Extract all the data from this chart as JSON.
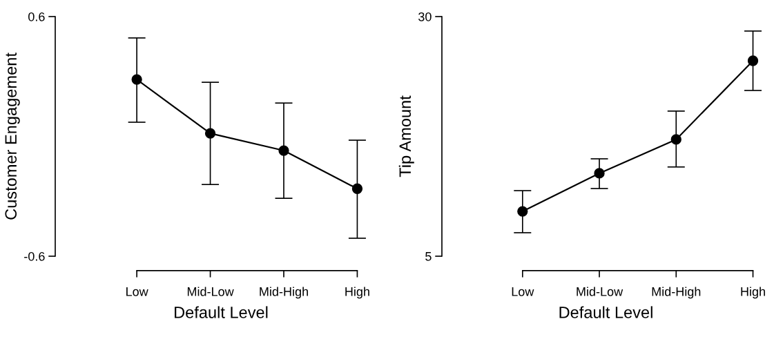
{
  "chart_data": [
    {
      "type": "line",
      "categories": [
        "Low",
        "Mid-Low",
        "Mid-High",
        "High"
      ],
      "xlabel": "Default Level",
      "ylabel": "Customer Engagement",
      "ylim": [
        -0.6,
        0.6
      ],
      "yticks": [
        0.6,
        -0.6
      ],
      "marker": "circle",
      "line_style": "solid",
      "grid": false,
      "legend": false,
      "series": [
        {
          "color": "#000000",
          "values": [
            0.285,
            0.015,
            -0.071,
            -0.262
          ],
          "errors": [
            [
              0.071,
              0.493
            ],
            [
              -0.241,
              0.271
            ],
            [
              -0.31,
              0.167
            ],
            [
              -0.51,
              -0.019
            ]
          ]
        }
      ]
    },
    {
      "type": "line",
      "categories": [
        "Low",
        "Mid-Low",
        "Mid-High",
        "High"
      ],
      "xlabel": "Default Level",
      "ylabel": "Tip Amount",
      "ylim": [
        5,
        30
      ],
      "yticks": [
        30,
        5
      ],
      "marker": "circle",
      "line_style": "solid",
      "grid": false,
      "legend": false,
      "series": [
        {
          "color": "#000000",
          "values": [
            9.68,
            13.65,
            17.18,
            25.39
          ],
          "errors": [
            [
              7.45,
              11.84
            ],
            [
              12.06,
              15.16
            ],
            [
              14.31,
              20.14
            ],
            [
              22.29,
              28.49
            ]
          ]
        }
      ]
    }
  ]
}
